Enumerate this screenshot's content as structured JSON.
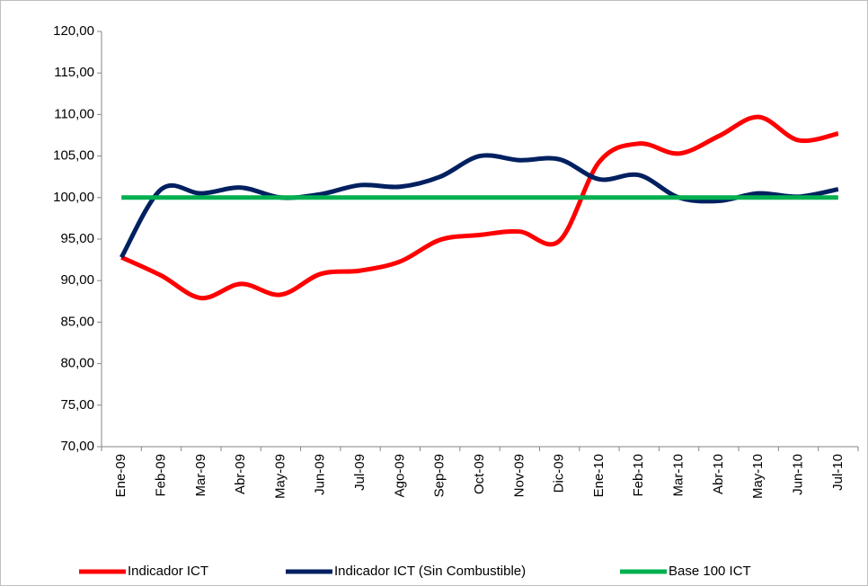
{
  "chart_data": {
    "type": "line",
    "categories": [
      "Ene-09",
      "Feb-09",
      "Mar-09",
      "Abr-09",
      "May-09",
      "Jun-09",
      "Jul-09",
      "Ago-09",
      "Sep-09",
      "Oct-09",
      "Nov-09",
      "Dic-09",
      "Ene-10",
      "Feb-10",
      "Mar-10",
      "Abr-10",
      "May-10",
      "Jun-10",
      "Jul-10"
    ],
    "series": [
      {
        "name": "Indicador ICT",
        "color": "#ff0000",
        "values": [
          92.8,
          90.6,
          87.9,
          89.6,
          88.3,
          90.8,
          91.2,
          92.3,
          94.9,
          95.5,
          95.9,
          94.8,
          104.3,
          106.5,
          105.3,
          107.4,
          109.7,
          106.9,
          107.7
        ]
      },
      {
        "name": "Indicador ICT (Sin Combustible)",
        "color": "#002060",
        "values": [
          92.8,
          101.0,
          100.5,
          101.2,
          100.0,
          100.4,
          101.5,
          101.3,
          102.5,
          105.0,
          104.5,
          104.6,
          102.2,
          102.7,
          100.0,
          99.6,
          100.5,
          100.1,
          101.0
        ]
      },
      {
        "name": "Base 100 ICT",
        "color": "#00b050",
        "values": [
          100,
          100,
          100,
          100,
          100,
          100,
          100,
          100,
          100,
          100,
          100,
          100,
          100,
          100,
          100,
          100,
          100,
          100,
          100
        ]
      }
    ],
    "ylim": [
      70,
      120
    ],
    "yticks": [
      {
        "value": 70,
        "label": "70,00"
      },
      {
        "value": 75,
        "label": "75,00"
      },
      {
        "value": 80,
        "label": "80,00"
      },
      {
        "value": 85,
        "label": "85,00"
      },
      {
        "value": 90,
        "label": "90,00"
      },
      {
        "value": 95,
        "label": "95,00"
      },
      {
        "value": 100,
        "label": "100,00"
      },
      {
        "value": 105,
        "label": "105,00"
      },
      {
        "value": 110,
        "label": "110,00"
      },
      {
        "value": 115,
        "label": "115,00"
      },
      {
        "value": 120,
        "label": "120,00"
      }
    ],
    "legend": "bottom"
  }
}
